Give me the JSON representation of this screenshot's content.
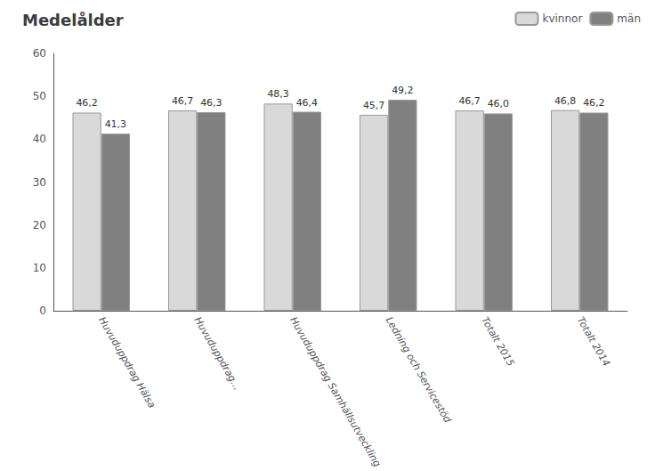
{
  "chart_data": {
    "type": "bar",
    "title": "Medelålder",
    "categories": [
      "Huvuduppdrag Hälsa",
      "Huvuduppdrag…",
      "Huvuduppdrag Samhällsutveckling",
      "Ledning och Servicestöd",
      "Totalt 2015",
      "Totalt 2014"
    ],
    "series": [
      {
        "name": "kvinnor",
        "color": "#d9d9d9",
        "values": [
          46.2,
          46.7,
          48.3,
          45.7,
          46.7,
          46.8
        ],
        "value_labels": [
          "46,2",
          "46,7",
          "48,3",
          "45,7",
          "46,7",
          "46,8"
        ]
      },
      {
        "name": "män",
        "color": "#808080",
        "values": [
          41.3,
          46.3,
          46.4,
          49.2,
          46.0,
          46.2
        ],
        "value_labels": [
          "41,3",
          "46,3",
          "46,4",
          "49,2",
          "46,0",
          "46,2"
        ]
      }
    ],
    "ylim": [
      0,
      60
    ],
    "yticks": [
      0,
      10,
      20,
      30,
      40,
      50,
      60
    ],
    "grid": false,
    "legend": "top-right",
    "data_labels": true
  }
}
